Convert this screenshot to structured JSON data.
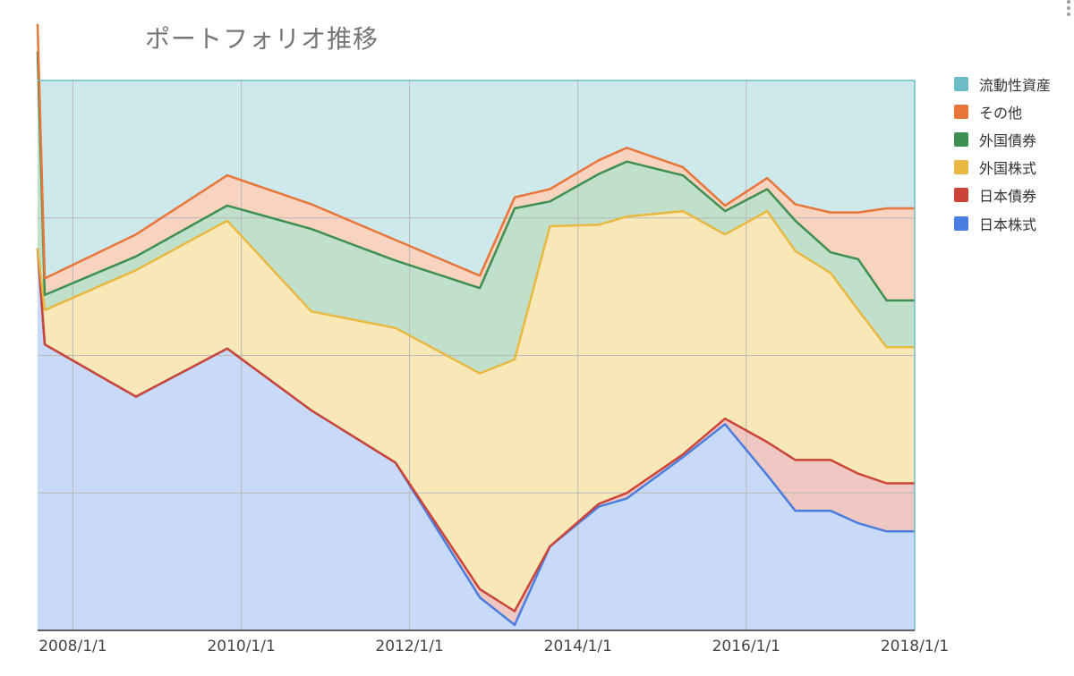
{
  "chart_data": {
    "type": "area",
    "stacked": true,
    "title": "ポートフォリオ推移",
    "xlabel": "",
    "ylabel": "",
    "x_axis_type": "date",
    "x_ticks": [
      "2008-01-01",
      "2010-01-01",
      "2012-01-01",
      "2014-01-01",
      "2016-01-01",
      "2018-01-01"
    ],
    "x_tick_labels": [
      "2008/1/1",
      "2010/1/1",
      "2012/1/1",
      "2014/1/1",
      "2016/1/1",
      "2018/1/1"
    ],
    "x_range": [
      "2007-08-01",
      "2018-01-01"
    ],
    "y_range": [
      0,
      400
    ],
    "y_gridlines": [
      100,
      200,
      300,
      400
    ],
    "y_tick_labels_visible": false,
    "grid": true,
    "legend_position": "right",
    "x": [
      "2007-08-01",
      "2007-09-01",
      "2008-10-01",
      "2009-11-01",
      "2010-11-01",
      "2011-11-01",
      "2012-11-01",
      "2013-04-01",
      "2013-09-01",
      "2014-04-01",
      "2014-08-01",
      "2015-04-01",
      "2015-10-01",
      "2016-04-01",
      "2016-08-01",
      "2017-01-01",
      "2017-05-01",
      "2017-09-01",
      "2018-01-01"
    ],
    "series": [
      {
        "name": "日本株式",
        "color": "#4a7de0",
        "fill": "#c9daf8",
        "values": [
          278,
          208,
          170,
          205,
          160,
          122,
          24,
          4,
          61,
          90,
          96,
          126,
          150,
          113,
          87,
          87,
          78,
          72,
          72
        ]
      },
      {
        "name": "日本債券",
        "color": "#cc4437",
        "fill": "#efc8c4",
        "values": [
          0,
          0,
          0,
          0,
          0,
          0,
          6,
          10,
          0,
          2,
          4,
          2,
          4,
          24,
          37,
          37,
          36,
          35,
          35
        ]
      },
      {
        "name": "外国株式",
        "color": "#e8b841",
        "fill": "#f8e8b8",
        "values": [
          0,
          25,
          92,
          93,
          72,
          98,
          157,
          183,
          233,
          203,
          201,
          177,
          134,
          168,
          152,
          136,
          119,
          99,
          99
        ]
      },
      {
        "name": "外国債券",
        "color": "#3d8f52",
        "fill": "#c0e0cc",
        "values": [
          143,
          11,
          10,
          11,
          60,
          49,
          62,
          110,
          18,
          37,
          40,
          26,
          17,
          16,
          22,
          15,
          37,
          34,
          34
        ]
      },
      {
        "name": "その他",
        "color": "#e8763a",
        "fill": "#f8d3c0",
        "values": [
          20,
          12,
          16,
          22,
          18,
          15,
          9,
          8,
          9,
          10,
          10,
          6,
          4,
          8,
          12,
          29,
          34,
          67,
          67
        ]
      },
      {
        "name": "流動性資産",
        "color": "#6cbcc8",
        "fill": "#cde9ec",
        "values": [
          0,
          0,
          0,
          0,
          0,
          0,
          0,
          0,
          0,
          0,
          0,
          0,
          0,
          0,
          0,
          0,
          0,
          0,
          0
        ]
      }
    ]
  }
}
